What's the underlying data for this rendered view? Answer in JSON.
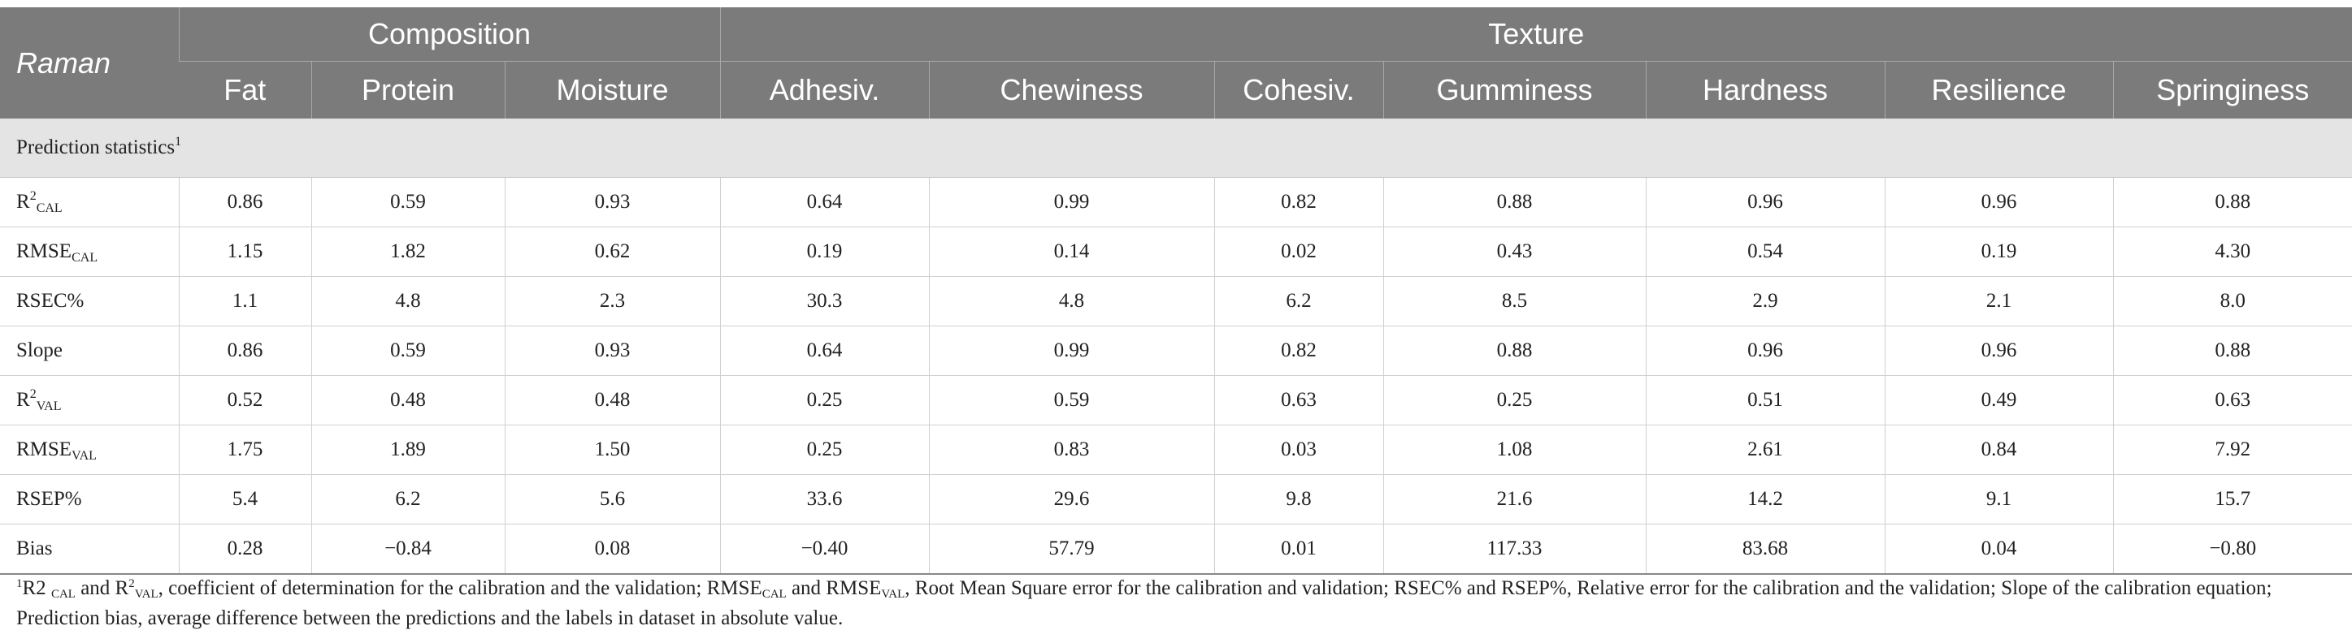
{
  "header": {
    "row_label": "Raman",
    "groups": {
      "composition": "Composition",
      "texture": "Texture"
    },
    "columns": [
      "Fat",
      "Protein",
      "Moisture",
      "Adhesiv.",
      "Chewiness",
      "Cohesiv.",
      "Gumminess",
      "Hardness",
      "Resilience",
      "Springiness"
    ]
  },
  "section": {
    "title": "Prediction statistics",
    "marker": "1"
  },
  "rows": [
    {
      "label": {
        "main": "R",
        "sup": "2",
        "sub": "CAL"
      },
      "values": [
        "0.86",
        "0.59",
        "0.93",
        "0.64",
        "0.99",
        "0.82",
        "0.88",
        "0.96",
        "0.96",
        "0.88"
      ]
    },
    {
      "label": {
        "main": "RMSE",
        "sub": "CAL"
      },
      "values": [
        "1.15",
        "1.82",
        "0.62",
        "0.19",
        "0.14",
        "0.02",
        "0.43",
        "0.54",
        "0.19",
        "4.30"
      ]
    },
    {
      "label": {
        "main": "RSEC%"
      },
      "values": [
        "1.1",
        "4.8",
        "2.3",
        "30.3",
        "4.8",
        "6.2",
        "8.5",
        "2.9",
        "2.1",
        "8.0"
      ]
    },
    {
      "label": {
        "main": "Slope"
      },
      "values": [
        "0.86",
        "0.59",
        "0.93",
        "0.64",
        "0.99",
        "0.82",
        "0.88",
        "0.96",
        "0.96",
        "0.88"
      ]
    },
    {
      "label": {
        "main": "R",
        "sup": "2",
        "sub": "VAL"
      },
      "values": [
        "0.52",
        "0.48",
        "0.48",
        "0.25",
        "0.59",
        "0.63",
        "0.25",
        "0.51",
        "0.49",
        "0.63"
      ]
    },
    {
      "label": {
        "main": "RMSE",
        "sub": "VAL"
      },
      "values": [
        "1.75",
        "1.89",
        "1.50",
        "0.25",
        "0.83",
        "0.03",
        "1.08",
        "2.61",
        "0.84",
        "7.92"
      ]
    },
    {
      "label": {
        "main": "RSEP%"
      },
      "values": [
        "5.4",
        "6.2",
        "5.6",
        "33.6",
        "29.6",
        "9.8",
        "21.6",
        "14.2",
        "9.1",
        "15.7"
      ]
    },
    {
      "label": {
        "main": "Bias"
      },
      "values": [
        "0.28",
        "−0.84",
        "0.08",
        "−0.40",
        "57.79",
        "0.01",
        "117.33",
        "83.68",
        "0.04",
        "−0.80"
      ]
    }
  ],
  "footnote": {
    "marker": "1",
    "p1": "R2 ",
    "cal": "CAL",
    "p2": " and R",
    "sq": "2",
    "val": "VAL",
    "p3": ", coefficient of determination for the calibration and the validation; RMSE",
    "p4": " and RMSE",
    "p5": ", Root Mean Square error for the calibration and validation; RSEC% and RSEP%, Relative error for the calibration and the validation; Slope of the calibration equation; Prediction bias, average difference between the predictions and the labels in dataset in absolute value."
  }
}
